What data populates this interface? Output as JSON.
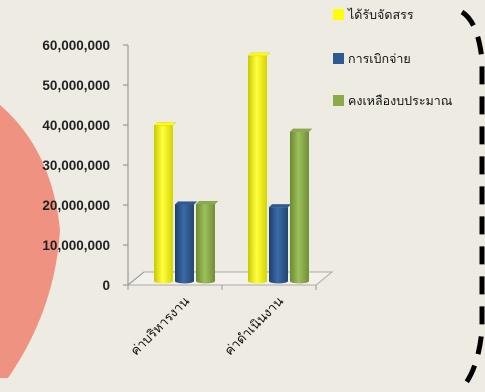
{
  "chart_data": {
    "type": "bar",
    "categories": [
      "ค่าบริหารงาน",
      "ค่าดำเนินงาน"
    ],
    "series": [
      {
        "name": "ได้รับจัดสรร",
        "values": [
          40300000,
          58000000
        ],
        "color": "#ffff00"
      },
      {
        "name": "การเบิกจ่าย",
        "values": [
          20200000,
          19500000
        ],
        "color": "#2e5a93"
      },
      {
        "name": "คงเหลืองบประมาณ",
        "values": [
          20300000,
          38700000
        ],
        "color": "#8aac48"
      }
    ],
    "y_ticks": [
      "0",
      "10,000,000",
      "20,000,000",
      "30,000,000",
      "40,000,000",
      "50,000,000",
      "60,000,000"
    ],
    "ylim": [
      0,
      60000000
    ],
    "legend_position": "top-right",
    "grid": false,
    "three_d": true
  },
  "decor": {
    "blob_color": "#f08a78",
    "border_color": "#000000"
  }
}
